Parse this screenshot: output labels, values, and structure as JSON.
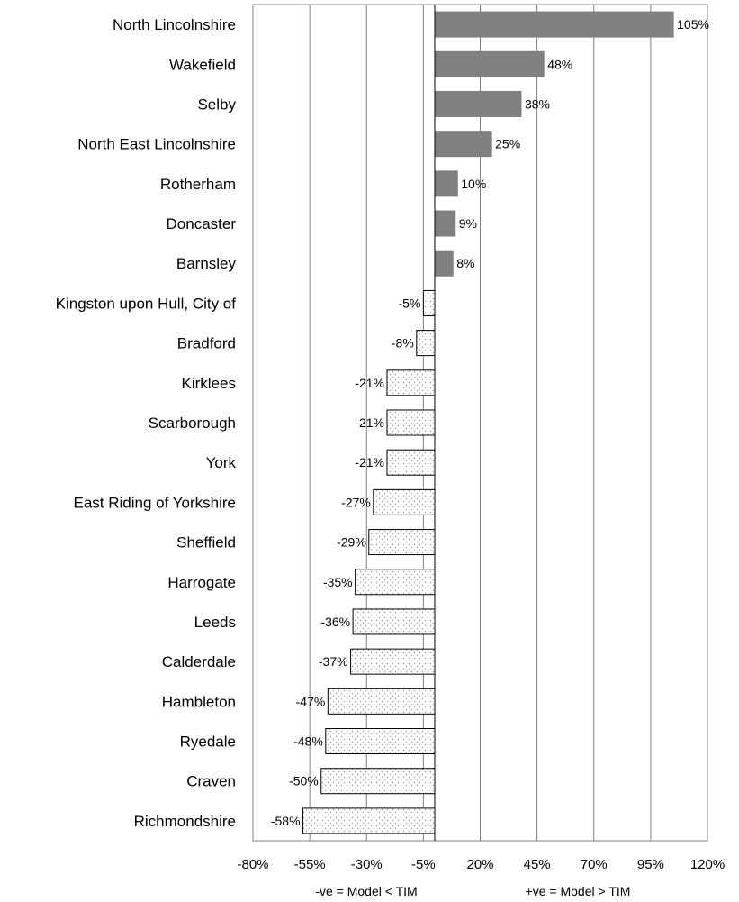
{
  "chart_data": {
    "type": "bar",
    "orientation": "horizontal",
    "categories": [
      "North Lincolnshire",
      "Wakefield",
      "Selby",
      "North East Lincolnshire",
      "Rotherham",
      "Doncaster",
      "Barnsley",
      "Kingston upon Hull, City of",
      "Bradford",
      "Kirklees",
      "Scarborough",
      "York",
      "East Riding of Yorkshire",
      "Sheffield",
      "Harrogate",
      "Leeds",
      "Calderdale",
      "Hambleton",
      "Ryedale",
      "Craven",
      "Richmondshire"
    ],
    "values": [
      105,
      48,
      38,
      25,
      10,
      9,
      8,
      -5,
      -8,
      -21,
      -21,
      -21,
      -27,
      -29,
      -35,
      -36,
      -37,
      -47,
      -48,
      -50,
      -58
    ],
    "data_labels": [
      "105%",
      "48%",
      "38%",
      "25%",
      "10%",
      "9%",
      "8%",
      "-5%",
      "-8%",
      "-21%",
      "-21%",
      "-21%",
      "-27%",
      "-29%",
      "-35%",
      "-36%",
      "-37%",
      "-47%",
      "-48%",
      "-50%",
      "-58%"
    ],
    "xlim": [
      -80,
      120
    ],
    "ticks": [
      -80,
      -55,
      -30,
      -5,
      20,
      45,
      70,
      95,
      120
    ],
    "tick_labels": [
      "-80%",
      "-55%",
      "-30%",
      "-5%",
      "20%",
      "45%",
      "70%",
      "95%",
      "120%"
    ],
    "grid": true,
    "annotations": {
      "negative_note": "-ve = Model < TIM",
      "positive_note": "+ve = Model > TIM"
    },
    "colors": {
      "positive_fill": "#808080",
      "negative_fill": "#ffffff",
      "negative_dots": "#9a9a9a",
      "bar_outline": "#000000",
      "gridline": "#808080"
    }
  }
}
